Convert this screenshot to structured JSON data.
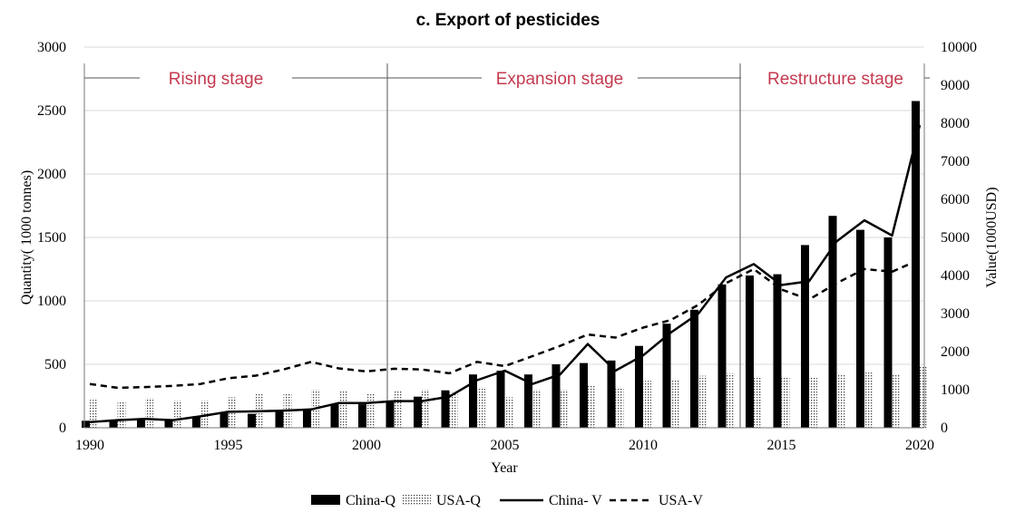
{
  "chart_data": {
    "type": "bar",
    "title": "c. Export of pesticides",
    "xlabel": "Year",
    "ylabel": "Quantity( 1000 tonnes)",
    "y2label": "Value(1000USD)",
    "ylim": [
      0,
      3000
    ],
    "y2lim": [
      0,
      10000
    ],
    "yticks": [
      "0",
      "500",
      "1000",
      "1500",
      "2000",
      "2500",
      "3000"
    ],
    "y2ticks": [
      "0",
      "1000",
      "2000",
      "3000",
      "4000",
      "5000",
      "6000",
      "7000",
      "8000",
      "9000",
      "10000"
    ],
    "xticks": [
      "1990",
      "1995",
      "2000",
      "2005",
      "2010",
      "2015",
      "2020"
    ],
    "years": [
      1990,
      1991,
      1992,
      1993,
      1994,
      1995,
      1996,
      1997,
      1998,
      1999,
      2000,
      2001,
      2002,
      2003,
      2004,
      2005,
      2006,
      2007,
      2008,
      2009,
      2010,
      2011,
      2012,
      2013,
      2014,
      2015,
      2016,
      2017,
      2018,
      2019,
      2020
    ],
    "stages": [
      {
        "label": "Rising stage",
        "start": 1990,
        "end": 2001
      },
      {
        "label": "Expansion stage",
        "start": 2001,
        "end": 2014
      },
      {
        "label": "Restructure stage",
        "start": 2014,
        "end": 2020
      }
    ],
    "legend": "bottom",
    "series": [
      {
        "name": "China-Q",
        "kind": "bar",
        "axis": "left",
        "values": [
          55,
          65,
          70,
          65,
          90,
          120,
          110,
          135,
          140,
          185,
          185,
          210,
          245,
          295,
          420,
          450,
          420,
          500,
          510,
          530,
          645,
          820,
          930,
          1130,
          1200,
          1210,
          1440,
          1670,
          1560,
          1500,
          2575
        ]
      },
      {
        "name": "USA-Q",
        "kind": "bar-dotted",
        "axis": "left",
        "values": [
          220,
          200,
          235,
          215,
          215,
          240,
          275,
          270,
          300,
          290,
          275,
          295,
          300,
          280,
          320,
          240,
          300,
          300,
          340,
          320,
          370,
          380,
          410,
          430,
          405,
          395,
          395,
          415,
          435,
          420,
          485
        ]
      },
      {
        "name": "China- V",
        "kind": "line-solid",
        "axis": "right",
        "values": [
          150,
          200,
          230,
          200,
          300,
          420,
          430,
          450,
          480,
          650,
          650,
          700,
          700,
          820,
          1250,
          1500,
          1150,
          1400,
          2200,
          1500,
          1900,
          2500,
          3000,
          3950,
          4300,
          3750,
          3850,
          4900,
          5450,
          5050,
          7950
        ]
      },
      {
        "name": "USA-V",
        "kind": "line-dashed",
        "axis": "right",
        "values": [
          1150,
          1050,
          1070,
          1100,
          1150,
          1300,
          1370,
          1530,
          1730,
          1560,
          1480,
          1550,
          1530,
          1430,
          1730,
          1620,
          1880,
          2150,
          2450,
          2370,
          2630,
          2830,
          3230,
          3800,
          4170,
          3630,
          3370,
          3800,
          4170,
          4100,
          4420
        ]
      }
    ]
  }
}
